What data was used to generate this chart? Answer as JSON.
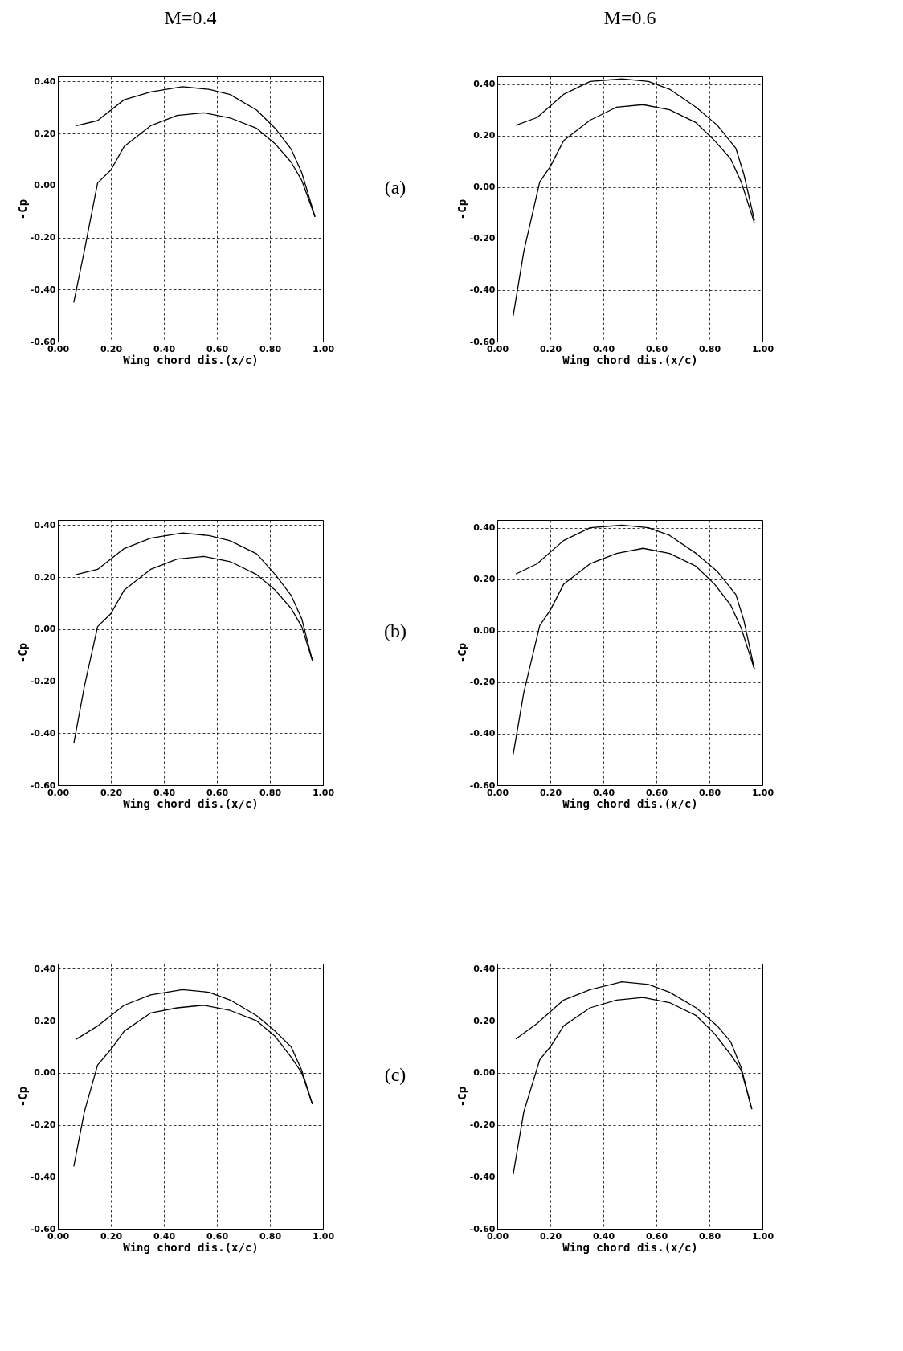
{
  "chart_data": [
    {
      "type": "line",
      "title": "M=0.4",
      "xlabel": "Wing chord dis.(x/c)",
      "ylabel": "-Cp",
      "annotations": [
        "(a)"
      ],
      "grid": true,
      "xlim": [
        0,
        1
      ],
      "ylim": [
        -0.6,
        0.42
      ],
      "xticks": [
        {
          "value": 0,
          "label": "0.00"
        },
        {
          "value": 0.2,
          "label": "0.20"
        },
        {
          "value": 0.4,
          "label": "0.40"
        },
        {
          "value": 0.6,
          "label": "0.60"
        },
        {
          "value": 0.8,
          "label": "0.80"
        },
        {
          "value": 1,
          "label": "1.00"
        }
      ],
      "yticks": [
        {
          "value": -0.6,
          "label": "-0.60"
        },
        {
          "value": -0.4,
          "label": "-0.40"
        },
        {
          "value": -0.2,
          "label": "-0.20"
        },
        {
          "value": 0,
          "label": "0.00"
        },
        {
          "value": 0.2,
          "label": "0.20"
        },
        {
          "value": 0.4,
          "label": "0.40"
        }
      ],
      "series": [
        {
          "color": "#000000",
          "x": [
            0.07,
            0.15,
            0.25,
            0.35,
            0.47,
            0.57,
            0.65,
            0.75,
            0.82,
            0.88,
            0.92,
            0.97
          ],
          "values": [
            0.23,
            0.25,
            0.33,
            0.36,
            0.38,
            0.37,
            0.35,
            0.29,
            0.22,
            0.14,
            0.05,
            -0.12
          ]
        },
        {
          "color": "#000000",
          "x": [
            0.06,
            0.1,
            0.15,
            0.2,
            0.25,
            0.35,
            0.45,
            0.55,
            0.65,
            0.75,
            0.82,
            0.88,
            0.92,
            0.97
          ],
          "values": [
            -0.45,
            -0.25,
            0.01,
            0.06,
            0.15,
            0.23,
            0.27,
            0.28,
            0.26,
            0.22,
            0.16,
            0.09,
            0.02,
            -0.12
          ]
        }
      ]
    },
    {
      "type": "line",
      "title": "M=0.6",
      "xlabel": "Wing chord dis.(x/c)",
      "ylabel": "-Cp",
      "grid": true,
      "xlim": [
        0,
        1
      ],
      "ylim": [
        -0.6,
        0.43
      ],
      "xticks": [
        {
          "value": 0,
          "label": "0.00"
        },
        {
          "value": 0.2,
          "label": "0.20"
        },
        {
          "value": 0.4,
          "label": "0.40"
        },
        {
          "value": 0.6,
          "label": "0.60"
        },
        {
          "value": 0.8,
          "label": "0.80"
        },
        {
          "value": 1,
          "label": "1.00"
        }
      ],
      "yticks": [
        {
          "value": -0.6,
          "label": "-0.60"
        },
        {
          "value": -0.4,
          "label": "-0.40"
        },
        {
          "value": -0.2,
          "label": "-0.20"
        },
        {
          "value": 0,
          "label": "0.00"
        },
        {
          "value": 0.2,
          "label": "0.20"
        },
        {
          "value": 0.4,
          "label": "0.40"
        }
      ],
      "series": [
        {
          "color": "#000000",
          "x": [
            0.07,
            0.15,
            0.25,
            0.35,
            0.47,
            0.57,
            0.65,
            0.75,
            0.83,
            0.9,
            0.93,
            0.97
          ],
          "values": [
            0.24,
            0.27,
            0.36,
            0.41,
            0.42,
            0.41,
            0.38,
            0.31,
            0.24,
            0.15,
            0.05,
            -0.13
          ]
        },
        {
          "color": "#000000",
          "x": [
            0.06,
            0.1,
            0.16,
            0.2,
            0.25,
            0.35,
            0.45,
            0.55,
            0.65,
            0.75,
            0.82,
            0.88,
            0.92,
            0.97
          ],
          "values": [
            -0.5,
            -0.25,
            0.02,
            0.08,
            0.18,
            0.26,
            0.31,
            0.32,
            0.3,
            0.25,
            0.18,
            0.11,
            0.02,
            -0.14
          ]
        }
      ]
    },
    {
      "type": "line",
      "xlabel": "Wing chord dis.(x/c)",
      "ylabel": "-Cp",
      "annotations": [
        "(b)"
      ],
      "grid": true,
      "xlim": [
        0,
        1
      ],
      "ylim": [
        -0.6,
        0.42
      ],
      "xticks": [
        {
          "value": 0,
          "label": "0.00"
        },
        {
          "value": 0.2,
          "label": "0.20"
        },
        {
          "value": 0.4,
          "label": "0.40"
        },
        {
          "value": 0.6,
          "label": "0.60"
        },
        {
          "value": 0.8,
          "label": "0.80"
        },
        {
          "value": 1,
          "label": "1.00"
        }
      ],
      "yticks": [
        {
          "value": -0.6,
          "label": "-0.60"
        },
        {
          "value": -0.4,
          "label": "-0.40"
        },
        {
          "value": -0.2,
          "label": "-0.20"
        },
        {
          "value": 0,
          "label": "0.00"
        },
        {
          "value": 0.2,
          "label": "0.20"
        },
        {
          "value": 0.4,
          "label": "0.40"
        }
      ],
      "series": [
        {
          "color": "#000000",
          "x": [
            0.07,
            0.15,
            0.25,
            0.35,
            0.47,
            0.57,
            0.65,
            0.75,
            0.82,
            0.88,
            0.92,
            0.96
          ],
          "values": [
            0.21,
            0.23,
            0.31,
            0.35,
            0.37,
            0.36,
            0.34,
            0.29,
            0.21,
            0.13,
            0.04,
            -0.12
          ]
        },
        {
          "color": "#000000",
          "x": [
            0.06,
            0.1,
            0.15,
            0.2,
            0.25,
            0.35,
            0.45,
            0.55,
            0.65,
            0.75,
            0.82,
            0.88,
            0.92,
            0.96
          ],
          "values": [
            -0.44,
            -0.22,
            0.01,
            0.06,
            0.15,
            0.23,
            0.27,
            0.28,
            0.26,
            0.21,
            0.15,
            0.08,
            0.01,
            -0.12
          ]
        }
      ]
    },
    {
      "type": "line",
      "xlabel": "Wing chord dis.(x/c)",
      "ylabel": "-Cp",
      "grid": true,
      "xlim": [
        0,
        1
      ],
      "ylim": [
        -0.6,
        0.43
      ],
      "xticks": [
        {
          "value": 0,
          "label": "0.00"
        },
        {
          "value": 0.2,
          "label": "0.20"
        },
        {
          "value": 0.4,
          "label": "0.40"
        },
        {
          "value": 0.6,
          "label": "0.60"
        },
        {
          "value": 0.8,
          "label": "0.80"
        },
        {
          "value": 1,
          "label": "1.00"
        }
      ],
      "yticks": [
        {
          "value": -0.6,
          "label": "-0.60"
        },
        {
          "value": -0.4,
          "label": "-0.40"
        },
        {
          "value": -0.2,
          "label": "-0.20"
        },
        {
          "value": 0,
          "label": "0.00"
        },
        {
          "value": 0.2,
          "label": "0.20"
        },
        {
          "value": 0.4,
          "label": "0.40"
        }
      ],
      "series": [
        {
          "color": "#000000",
          "x": [
            0.07,
            0.15,
            0.25,
            0.35,
            0.47,
            0.57,
            0.65,
            0.75,
            0.83,
            0.9,
            0.93,
            0.97
          ],
          "values": [
            0.22,
            0.26,
            0.35,
            0.4,
            0.41,
            0.4,
            0.37,
            0.3,
            0.23,
            0.14,
            0.04,
            -0.15
          ]
        },
        {
          "color": "#000000",
          "x": [
            0.06,
            0.1,
            0.16,
            0.2,
            0.25,
            0.35,
            0.45,
            0.55,
            0.65,
            0.75,
            0.82,
            0.88,
            0.92,
            0.97
          ],
          "values": [
            -0.48,
            -0.24,
            0.02,
            0.08,
            0.18,
            0.26,
            0.3,
            0.32,
            0.3,
            0.25,
            0.18,
            0.1,
            0.01,
            -0.15
          ]
        }
      ]
    },
    {
      "type": "line",
      "xlabel": "Wing chord dis.(x/c)",
      "ylabel": "-Cp",
      "annotations": [
        "(c)"
      ],
      "grid": true,
      "xlim": [
        0,
        1
      ],
      "ylim": [
        -0.6,
        0.42
      ],
      "xticks": [
        {
          "value": 0,
          "label": "0.00"
        },
        {
          "value": 0.2,
          "label": "0.20"
        },
        {
          "value": 0.4,
          "label": "0.40"
        },
        {
          "value": 0.6,
          "label": "0.60"
        },
        {
          "value": 0.8,
          "label": "0.80"
        },
        {
          "value": 1,
          "label": "1.00"
        }
      ],
      "yticks": [
        {
          "value": -0.6,
          "label": "-0.60"
        },
        {
          "value": -0.4,
          "label": "-0.40"
        },
        {
          "value": -0.2,
          "label": "-0.20"
        },
        {
          "value": 0,
          "label": "0.00"
        },
        {
          "value": 0.2,
          "label": "0.20"
        },
        {
          "value": 0.4,
          "label": "0.40"
        }
      ],
      "series": [
        {
          "color": "#000000",
          "x": [
            0.07,
            0.15,
            0.25,
            0.35,
            0.47,
            0.57,
            0.65,
            0.75,
            0.82,
            0.88,
            0.92,
            0.96
          ],
          "values": [
            0.13,
            0.18,
            0.26,
            0.3,
            0.32,
            0.31,
            0.28,
            0.22,
            0.16,
            0.1,
            0.01,
            -0.12
          ]
        },
        {
          "color": "#000000",
          "x": [
            0.06,
            0.1,
            0.15,
            0.2,
            0.25,
            0.35,
            0.45,
            0.55,
            0.65,
            0.75,
            0.82,
            0.88,
            0.92,
            0.96
          ],
          "values": [
            -0.36,
            -0.15,
            0.03,
            0.09,
            0.16,
            0.23,
            0.25,
            0.26,
            0.24,
            0.2,
            0.14,
            0.06,
            0.0,
            -0.12
          ]
        }
      ]
    },
    {
      "type": "line",
      "xlabel": "Wing chord dis.(x/c)",
      "ylabel": "-Cp",
      "grid": true,
      "xlim": [
        0,
        1
      ],
      "ylim": [
        -0.6,
        0.42
      ],
      "xticks": [
        {
          "value": 0,
          "label": "0.00"
        },
        {
          "value": 0.2,
          "label": "0.20"
        },
        {
          "value": 0.4,
          "label": "0.40"
        },
        {
          "value": 0.6,
          "label": "0.60"
        },
        {
          "value": 0.8,
          "label": "0.80"
        },
        {
          "value": 1,
          "label": "1.00"
        }
      ],
      "yticks": [
        {
          "value": -0.6,
          "label": "-0.60"
        },
        {
          "value": -0.4,
          "label": "-0.40"
        },
        {
          "value": -0.2,
          "label": "-0.20"
        },
        {
          "value": 0,
          "label": "0.00"
        },
        {
          "value": 0.2,
          "label": "0.20"
        },
        {
          "value": 0.4,
          "label": "0.40"
        }
      ],
      "series": [
        {
          "color": "#000000",
          "x": [
            0.07,
            0.15,
            0.25,
            0.35,
            0.47,
            0.57,
            0.65,
            0.75,
            0.83,
            0.88,
            0.92,
            0.96
          ],
          "values": [
            0.13,
            0.19,
            0.28,
            0.32,
            0.35,
            0.34,
            0.31,
            0.25,
            0.18,
            0.12,
            0.02,
            -0.14
          ]
        },
        {
          "color": "#000000",
          "x": [
            0.06,
            0.1,
            0.16,
            0.2,
            0.25,
            0.35,
            0.45,
            0.55,
            0.65,
            0.75,
            0.82,
            0.88,
            0.92,
            0.96
          ],
          "values": [
            -0.39,
            -0.15,
            0.05,
            0.1,
            0.18,
            0.25,
            0.28,
            0.29,
            0.27,
            0.22,
            0.15,
            0.07,
            0.01,
            -0.14
          ]
        }
      ]
    }
  ]
}
